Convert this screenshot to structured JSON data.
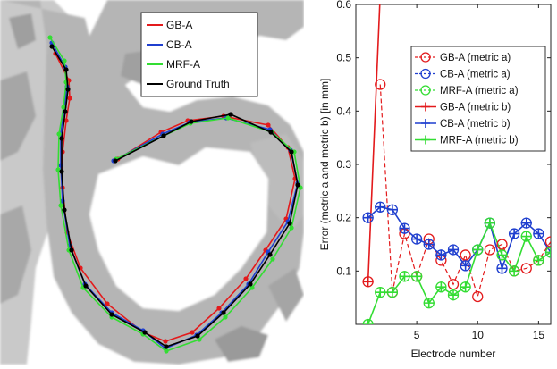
{
  "chart_data": [
    {
      "type": "line",
      "panel": "trajectory-overlay",
      "title": "",
      "xlabel": "",
      "ylabel": "",
      "legend_placement": "top-right",
      "background": "grey segmentation of anatomy",
      "series": [
        {
          "name": "GB-A",
          "color": "#e31a1c",
          "points": [
            [
              62,
              60
            ],
            [
              77,
              90
            ],
            [
              78,
              110
            ],
            [
              74,
              135
            ],
            [
              70,
              170
            ],
            [
              70,
              210
            ],
            [
              75,
              260
            ],
            [
              90,
              300
            ],
            [
              120,
              340
            ],
            [
              160,
              372
            ],
            [
              185,
              382
            ],
            [
              215,
              372
            ],
            [
              245,
              345
            ],
            [
              275,
              312
            ],
            [
              297,
              280
            ],
            [
              320,
              245
            ],
            [
              330,
              200
            ],
            [
              322,
              165
            ],
            [
              300,
              140
            ],
            [
              250,
              130
            ],
            [
              210,
              135
            ],
            [
              180,
              148
            ],
            [
              132,
              178
            ]
          ]
        },
        {
          "name": "CB-A",
          "color": "#1f3fcf",
          "points": [
            [
              58,
              48
            ],
            [
              73,
              75
            ],
            [
              75,
              97
            ],
            [
              72,
              120
            ],
            [
              68,
              150
            ],
            [
              68,
              185
            ],
            [
              70,
              225
            ],
            [
              78,
              275
            ],
            [
              95,
              318
            ],
            [
              125,
              350
            ],
            [
              160,
              370
            ],
            [
              185,
              390
            ],
            [
              220,
              375
            ],
            [
              248,
              350
            ],
            [
              278,
              318
            ],
            [
              300,
              282
            ],
            [
              322,
              248
            ],
            [
              333,
              205
            ],
            [
              325,
              168
            ],
            [
              302,
              145
            ],
            [
              253,
              132
            ],
            [
              212,
              137
            ],
            [
              182,
              150
            ],
            [
              127,
              180
            ]
          ]
        },
        {
          "name": "MRF-A",
          "color": "#33dd33",
          "points": [
            [
              56,
              42
            ],
            [
              72,
              68
            ],
            [
              74,
              92
            ],
            [
              71,
              120
            ],
            [
              66,
              150
            ],
            [
              65,
              190
            ],
            [
              68,
              230
            ],
            [
              77,
              280
            ],
            [
              93,
              322
            ],
            [
              125,
              355
            ],
            [
              160,
              374
            ],
            [
              186,
              393
            ],
            [
              223,
              380
            ],
            [
              252,
              355
            ],
            [
              282,
              322
            ],
            [
              305,
              290
            ],
            [
              326,
              255
            ],
            [
              336,
              210
            ],
            [
              329,
              170
            ],
            [
              304,
              148
            ],
            [
              255,
              132
            ],
            [
              213,
              138
            ],
            [
              183,
              152
            ],
            [
              130,
              178
            ]
          ]
        },
        {
          "name": "Ground Truth",
          "color": "#000000",
          "points": [
            [
              58,
              52
            ],
            [
              74,
              78
            ],
            [
              76,
              100
            ],
            [
              73,
              125
            ],
            [
              69,
              155
            ],
            [
              69,
              192
            ],
            [
              72,
              235
            ],
            [
              80,
              280
            ],
            [
              96,
              320
            ],
            [
              125,
              352
            ],
            [
              162,
              372
            ],
            [
              186,
              388
            ],
            [
              221,
              376
            ],
            [
              250,
              350
            ],
            [
              280,
              318
            ],
            [
              302,
              285
            ],
            [
              324,
              250
            ],
            [
              333,
              207
            ],
            [
              326,
              170
            ],
            [
              303,
              148
            ],
            [
              258,
              128
            ],
            [
              214,
              136
            ],
            [
              183,
              152
            ],
            [
              129,
              180
            ]
          ]
        }
      ]
    },
    {
      "type": "line",
      "panel": "error-plot",
      "title": "",
      "xlabel": "Electrode number",
      "ylabel": "Error (metric a and metric b) [in mm]",
      "xlim": [
        0,
        16
      ],
      "ylim": [
        0,
        0.6
      ],
      "xticks": [
        5,
        10,
        15
      ],
      "yticks": [
        0.1,
        0.2,
        0.3,
        0.4,
        0.5,
        0.6
      ],
      "grid": false,
      "legend_placement": "top-right",
      "x": [
        1,
        2,
        3,
        4,
        5,
        6,
        7,
        8,
        9,
        10,
        11,
        12,
        13,
        14,
        15,
        16
      ],
      "series": [
        {
          "name": "GB-A (metric a)",
          "color": "#e31a1c",
          "marker": "circle",
          "linestyle": "none",
          "values": [
            0.08,
            0.45,
            0.06,
            0.17,
            0.09,
            0.16,
            0.12,
            0.075,
            0.13,
            0.052,
            0.14,
            0.15,
            0.1,
            0.105,
            0.12,
            0.155
          ]
        },
        {
          "name": "CB-A (metric a)",
          "color": "#1f3fcf",
          "marker": "circle",
          "linestyle": "none",
          "values": [
            0.2,
            0.22,
            0.215,
            0.18,
            0.16,
            0.15,
            0.13,
            0.14,
            0.11,
            0.14,
            0.19,
            0.105,
            0.17,
            0.19,
            0.17,
            0.135
          ]
        },
        {
          "name": "MRF-A (metric a)",
          "color": "#33dd33",
          "marker": "circle",
          "linestyle": "none",
          "values": [
            0.0,
            0.06,
            0.06,
            0.09,
            0.09,
            0.04,
            0.07,
            0.055,
            0.07,
            0.14,
            0.19,
            0.13,
            0.1,
            0.165,
            0.12,
            0.135
          ]
        },
        {
          "name": "GB-A (metric b)",
          "color": "#e31a1c",
          "marker": "plus",
          "linestyle": "solid",
          "values": [
            0.08,
            0.62,
            null,
            null,
            null,
            null,
            null,
            null,
            null,
            null,
            null,
            null,
            null,
            null,
            null,
            null
          ]
        },
        {
          "name": "CB-A (metric b)",
          "color": "#1f3fcf",
          "marker": "plus",
          "linestyle": "solid",
          "values": [
            0.2,
            0.22,
            0.215,
            0.18,
            0.16,
            0.15,
            0.13,
            0.14,
            0.11,
            0.14,
            0.19,
            0.105,
            0.17,
            0.19,
            0.17,
            0.135
          ]
        },
        {
          "name": "MRF-A (metric b)",
          "color": "#33dd33",
          "marker": "plus",
          "linestyle": "solid",
          "values": [
            0.0,
            0.06,
            0.06,
            0.09,
            0.09,
            0.04,
            0.07,
            0.055,
            0.07,
            0.14,
            0.19,
            0.13,
            0.1,
            0.165,
            0.12,
            0.135
          ]
        }
      ],
      "dashed_links": [
        {
          "series": "GB-A (metric a)",
          "color": "#e31a1c",
          "from_index": 1
        }
      ]
    }
  ]
}
